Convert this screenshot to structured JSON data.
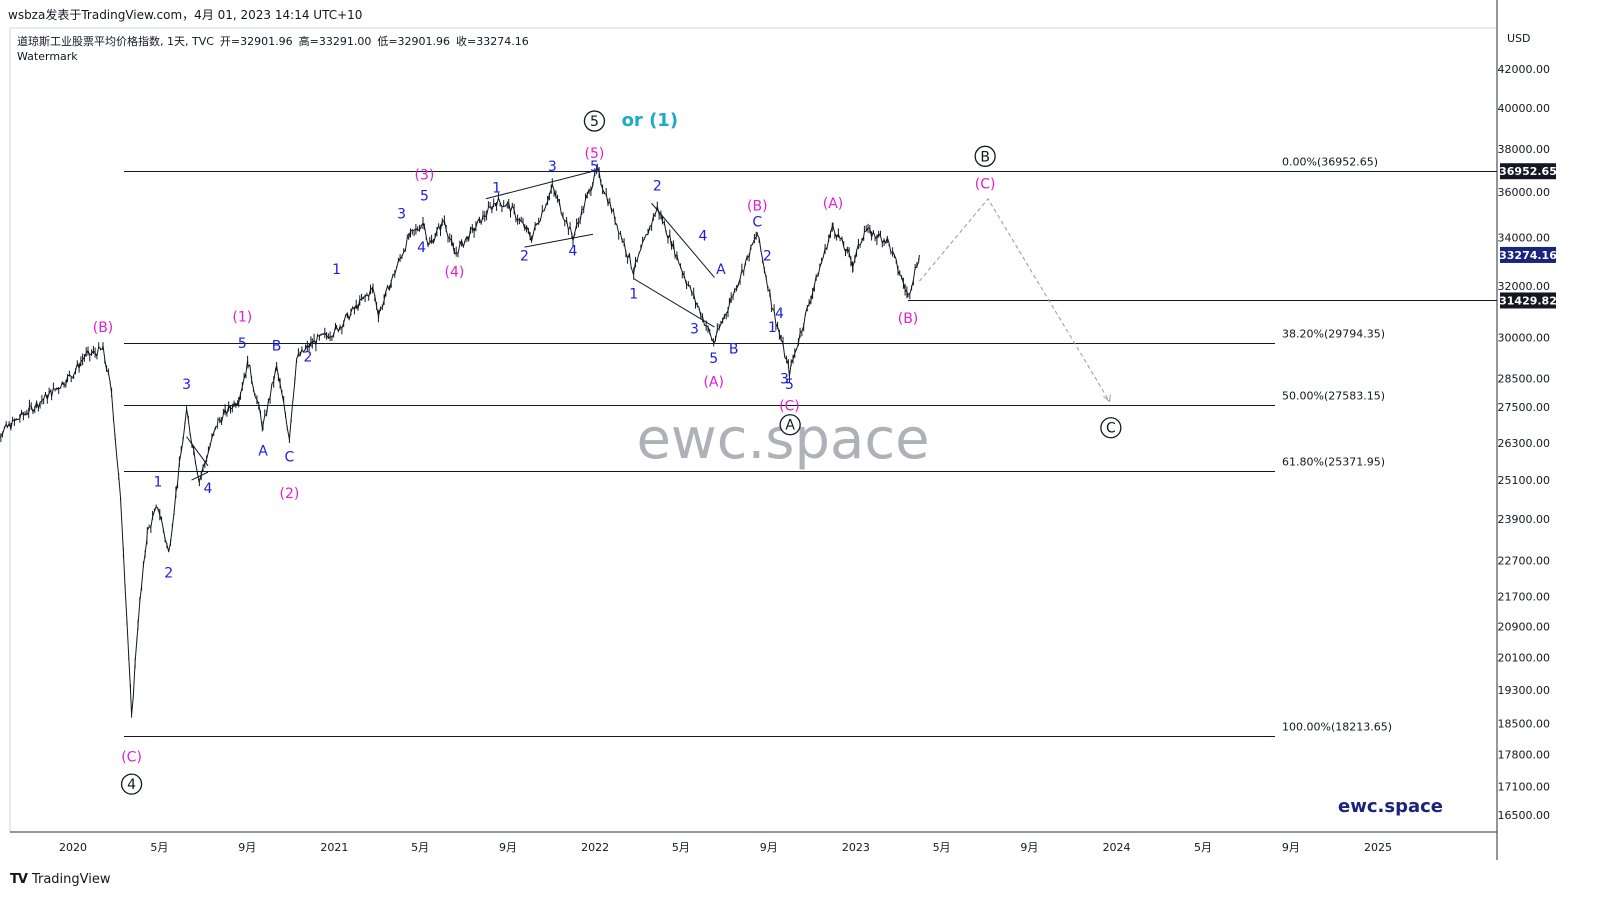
{
  "header": {
    "top_line": "wsbza发表于TradingView.com，4月 01, 2023 14:14 UTC+10",
    "symbol_line": "道琼斯工业股票平均价格指数, 1天, TVC",
    "open": "开=32901.96",
    "high": "高=33291.00",
    "low": "低=32901.96",
    "close": "收=33274.16",
    "watermark_label": "Watermark"
  },
  "footer": {
    "brand": "TradingView"
  },
  "colors": {
    "price": "#131722",
    "blue": "#1a1ee0",
    "magenta": "#e020d0",
    "cyan": "#20a8c8",
    "watermark": "#b0b0b8",
    "brand_text": "#1a237e"
  },
  "chart_data": {
    "type": "line",
    "title": "道琼斯工业股票平均价格指数",
    "currency": "USD",
    "ylim": [
      16500,
      42000
    ],
    "y_axis_ticks": [
      42000,
      40000,
      38000,
      36000,
      34000,
      32000,
      30000,
      28500,
      27500,
      26300,
      25100,
      23900,
      22700,
      21700,
      20900,
      20100,
      19300,
      18500,
      17800,
      17100,
      16500
    ],
    "x_axis_ticks": [
      {
        "label": "2020",
        "date": "2020-01-01"
      },
      {
        "label": "5月",
        "date": "2020-05-01"
      },
      {
        "label": "9月",
        "date": "2020-09-01"
      },
      {
        "label": "2021",
        "date": "2021-01-01"
      },
      {
        "label": "5月",
        "date": "2021-05-01"
      },
      {
        "label": "9月",
        "date": "2021-09-01"
      },
      {
        "label": "2022",
        "date": "2022-01-01"
      },
      {
        "label": "5月",
        "date": "2022-05-01"
      },
      {
        "label": "9月",
        "date": "2022-09-01"
      },
      {
        "label": "2023",
        "date": "2023-01-01"
      },
      {
        "label": "5月",
        "date": "2023-05-01"
      },
      {
        "label": "9月",
        "date": "2023-09-01"
      },
      {
        "label": "2024",
        "date": "2024-01-01"
      },
      {
        "label": "5月",
        "date": "2024-05-01"
      },
      {
        "label": "9月",
        "date": "2024-09-01"
      },
      {
        "label": "2025",
        "date": "2025-01-01"
      }
    ],
    "price_series": [
      [
        "2019-09-02",
        26300
      ],
      [
        "2019-10-01",
        26800
      ],
      [
        "2019-11-01",
        27400
      ],
      [
        "2019-12-02",
        28000
      ],
      [
        "2020-01-02",
        28700
      ],
      [
        "2020-01-17",
        29300
      ],
      [
        "2020-02-12",
        29550
      ],
      [
        "2020-02-24",
        28000
      ],
      [
        "2020-03-09",
        24000
      ],
      [
        "2020-03-23",
        18600
      ],
      [
        "2020-04-01",
        21000
      ],
      [
        "2020-04-14",
        23500
      ],
      [
        "2020-04-29",
        24300
      ],
      [
        "2020-05-14",
        22900
      ],
      [
        "2020-06-08",
        27300
      ],
      [
        "2020-06-26",
        25100
      ],
      [
        "2020-07-22",
        27000
      ],
      [
        "2020-08-20",
        27800
      ],
      [
        "2020-09-02",
        29100
      ],
      [
        "2020-09-23",
        26800
      ],
      [
        "2020-10-12",
        28900
      ],
      [
        "2020-10-30",
        26500
      ],
      [
        "2020-11-09",
        29200
      ],
      [
        "2020-12-01",
        29800
      ],
      [
        "2021-01-04",
        30300
      ],
      [
        "2021-02-24",
        31900
      ],
      [
        "2021-03-04",
        30900
      ],
      [
        "2021-04-15",
        34000
      ],
      [
        "2021-05-07",
        34700
      ],
      [
        "2021-05-12",
        33600
      ],
      [
        "2021-06-04",
        34750
      ],
      [
        "2021-06-18",
        33300
      ],
      [
        "2021-08-16",
        35600
      ],
      [
        "2021-09-02",
        35400
      ],
      [
        "2021-10-04",
        34000
      ],
      [
        "2021-11-02",
        36200
      ],
      [
        "2021-12-01",
        34000
      ],
      [
        "2021-12-29",
        36500
      ],
      [
        "2022-01-04",
        36950
      ],
      [
        "2022-02-24",
        32600
      ],
      [
        "2022-03-29",
        35300
      ],
      [
        "2022-05-09",
        32200
      ],
      [
        "2022-06-16",
        29800
      ],
      [
        "2022-07-08",
        31300
      ],
      [
        "2022-08-16",
        34150
      ],
      [
        "2022-09-06",
        31200
      ],
      [
        "2022-09-30",
        28700
      ],
      [
        "2022-11-30",
        34500
      ],
      [
        "2022-12-28",
        32900
      ],
      [
        "2023-01-13",
        34300
      ],
      [
        "2023-02-14",
        33900
      ],
      [
        "2023-03-15",
        31600
      ],
      [
        "2023-03-31",
        33274
      ]
    ],
    "horizontal_lines": [
      {
        "label": "0.00%(36952.65)",
        "value": 36952.65,
        "kind": "fib"
      },
      {
        "label": "38.20%(29794.35)",
        "value": 29794.35,
        "kind": "fib"
      },
      {
        "label": "50.00%(27583.15)",
        "value": 27583.15,
        "kind": "fib"
      },
      {
        "label": "61.80%(25371.95)",
        "value": 25371.95,
        "kind": "fib"
      },
      {
        "label": "100.00%(18213.65)",
        "value": 18213.65,
        "kind": "fib"
      },
      {
        "label": "",
        "value": 31429.82,
        "kind": "level"
      }
    ],
    "price_badges": [
      {
        "text": "36952.65",
        "value": 36952.65
      },
      {
        "text": "33274.16",
        "value": 33274.16,
        "current": true
      },
      {
        "text": "31429.82",
        "value": 31429.82
      }
    ],
    "wave_labels": [
      {
        "t": "(B)",
        "c": "m",
        "d": "2020-02-12",
        "v": 30400
      },
      {
        "t": "(C)",
        "c": "m",
        "d": "2020-03-23",
        "v": 17750
      },
      {
        "t": "4",
        "c": "k",
        "d": "2020-03-23",
        "v": 17150,
        "circled": true
      },
      {
        "t": "1",
        "c": "b",
        "d": "2020-04-29",
        "v": 25050
      },
      {
        "t": "2",
        "c": "b",
        "d": "2020-05-14",
        "v": 22350
      },
      {
        "t": "3",
        "c": "b",
        "d": "2020-06-08",
        "v": 28300
      },
      {
        "t": "4",
        "c": "b",
        "d": "2020-07-08",
        "v": 24850
      },
      {
        "t": "(1)",
        "c": "m",
        "d": "2020-08-25",
        "v": 30800
      },
      {
        "t": "5",
        "c": "b",
        "d": "2020-08-25",
        "v": 29800
      },
      {
        "t": "A",
        "c": "b",
        "d": "2020-09-23",
        "v": 26050
      },
      {
        "t": "B",
        "c": "b",
        "d": "2020-10-12",
        "v": 29700
      },
      {
        "t": "C",
        "c": "b",
        "d": "2020-10-30",
        "v": 25850
      },
      {
        "t": "(2)",
        "c": "m",
        "d": "2020-10-30",
        "v": 24700
      },
      {
        "t": "2",
        "c": "b",
        "d": "2020-11-25",
        "v": 29300
      },
      {
        "t": "1",
        "c": "b",
        "d": "2021-01-04",
        "v": 32700
      },
      {
        "t": "3",
        "c": "b",
        "d": "2021-04-05",
        "v": 35050
      },
      {
        "t": "(3)",
        "c": "m",
        "d": "2021-05-07",
        "v": 36800
      },
      {
        "t": "5",
        "c": "b",
        "d": "2021-05-07",
        "v": 35850
      },
      {
        "t": "4",
        "c": "b",
        "d": "2021-05-03",
        "v": 33600
      },
      {
        "t": "(4)",
        "c": "m",
        "d": "2021-06-18",
        "v": 32600
      },
      {
        "t": "1",
        "c": "b",
        "d": "2021-08-16",
        "v": 36200
      },
      {
        "t": "2",
        "c": "b",
        "d": "2021-09-24",
        "v": 33250
      },
      {
        "t": "3",
        "c": "b",
        "d": "2021-11-02",
        "v": 37200
      },
      {
        "t": "4",
        "c": "b",
        "d": "2021-12-01",
        "v": 33450
      },
      {
        "t": "5",
        "c": "b",
        "d": "2021-12-31",
        "v": 37200
      },
      {
        "t": "(5)",
        "c": "m",
        "d": "2021-12-31",
        "v": 37800
      },
      {
        "t": "5",
        "c": "k",
        "d": "2021-12-31",
        "v": 39350,
        "circled": true
      },
      {
        "t": "or (1)",
        "c": "c",
        "d": "2022-02-07",
        "v": 39350
      },
      {
        "t": "2",
        "c": "b",
        "d": "2022-03-29",
        "v": 36300
      },
      {
        "t": "1",
        "c": "b",
        "d": "2022-02-24",
        "v": 31700
      },
      {
        "t": "4",
        "c": "b",
        "d": "2022-06-01",
        "v": 34100
      },
      {
        "t": "3",
        "c": "b",
        "d": "2022-05-20",
        "v": 30350
      },
      {
        "t": "5",
        "c": "b",
        "d": "2022-06-16",
        "v": 29250
      },
      {
        "t": "(A)",
        "c": "m",
        "d": "2022-06-16",
        "v": 28400
      },
      {
        "t": "A",
        "c": "b",
        "d": "2022-06-26",
        "v": 32700
      },
      {
        "t": "B",
        "c": "b",
        "d": "2022-07-14",
        "v": 29600
      },
      {
        "t": "(B)",
        "c": "m",
        "d": "2022-08-16",
        "v": 35400
      },
      {
        "t": "C",
        "c": "b",
        "d": "2022-08-16",
        "v": 34700
      },
      {
        "t": "2",
        "c": "b",
        "d": "2022-08-30",
        "v": 33250
      },
      {
        "t": "1",
        "c": "b",
        "d": "2022-09-06",
        "v": 30400
      },
      {
        "t": "4",
        "c": "b",
        "d": "2022-09-16",
        "v": 30950
      },
      {
        "t": "3",
        "c": "b",
        "d": "2022-09-23",
        "v": 28500
      },
      {
        "t": "5",
        "c": "b",
        "d": "2022-09-30",
        "v": 28300
      },
      {
        "t": "(C)",
        "c": "m",
        "d": "2022-09-30",
        "v": 27550
      },
      {
        "t": "A",
        "c": "k",
        "d": "2022-10-01",
        "v": 26900,
        "circled": true
      },
      {
        "t": "(A)",
        "c": "m",
        "d": "2022-11-30",
        "v": 35500
      },
      {
        "t": "(B)",
        "c": "m",
        "d": "2023-03-15",
        "v": 30750
      },
      {
        "t": "B",
        "c": "k",
        "d": "2023-07-01",
        "v": 37650,
        "circled": true
      },
      {
        "t": "(C)",
        "c": "m",
        "d": "2023-07-01",
        "v": 36400
      },
      {
        "t": "C",
        "c": "k",
        "d": "2023-12-24",
        "v": 26800,
        "circled": true
      }
    ],
    "trendlines": [
      [
        "2021-08-01",
        35700,
        "2021-12-29",
        36950
      ],
      [
        "2021-09-24",
        33600,
        "2021-12-29",
        34150
      ],
      [
        "2022-03-21",
        35500,
        "2022-06-17",
        32350
      ],
      [
        "2022-02-24",
        32300,
        "2022-06-17",
        30400
      ],
      [
        "2020-06-08",
        26500,
        "2020-07-08",
        25550
      ],
      [
        "2020-06-15",
        25100,
        "2020-07-08",
        25350
      ]
    ],
    "forecast_path": [
      [
        "2023-03-31",
        32200
      ],
      [
        "2023-07-05",
        35700
      ],
      [
        "2023-12-22",
        27700
      ]
    ]
  },
  "watermark": {
    "big": "ewc.space",
    "small": "ewc.space"
  }
}
